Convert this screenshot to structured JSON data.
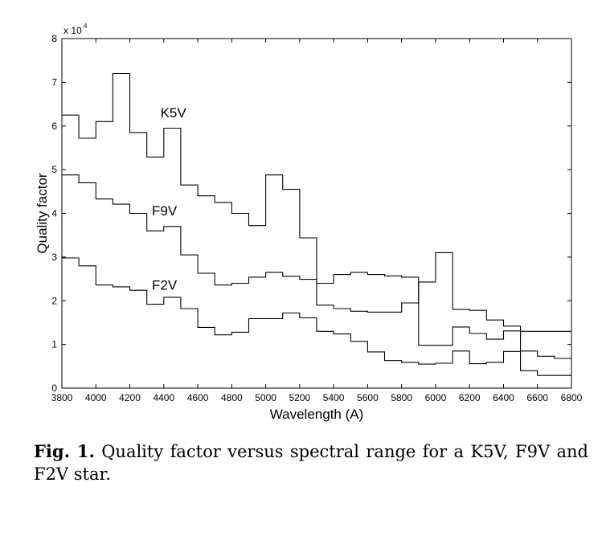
{
  "figure": {
    "label": "Fig. 1.",
    "caption": "Quality factor versus spectral range for a K5V, F9V and F2V star."
  },
  "chart_data": {
    "type": "line",
    "step": true,
    "title": "",
    "xlabel": "Wavelength (A)",
    "ylabel": "Quality factor",
    "y_multiplier_label": "x 10",
    "y_multiplier_exponent": "4",
    "xlim": [
      3800,
      6800
    ],
    "ylim": [
      0,
      80000
    ],
    "x_ticks": [
      3800,
      4000,
      4200,
      4400,
      4600,
      4800,
      5000,
      5200,
      5400,
      5600,
      5800,
      6000,
      6200,
      6400,
      6600,
      6800
    ],
    "y_ticks": [
      0,
      10000,
      20000,
      30000,
      40000,
      50000,
      60000,
      70000,
      80000
    ],
    "y_tick_labels": [
      "0",
      "1",
      "2",
      "3",
      "4",
      "5",
      "6",
      "7",
      "8"
    ],
    "grid": false,
    "bin_edges": [
      3800,
      3900,
      4000,
      4100,
      4200,
      4300,
      4400,
      4500,
      4600,
      4700,
      4800,
      4900,
      5000,
      5100,
      5200,
      5300,
      5400,
      5500,
      5600,
      5700,
      5800,
      5900,
      6000,
      6100,
      6200,
      6300,
      6400,
      6500,
      6600,
      6700,
      6800
    ],
    "series": [
      {
        "name": "K5V",
        "label_at": [
          4380,
          62000
        ],
        "values": [
          62500,
          57200,
          61000,
          72000,
          58500,
          52900,
          59500,
          46500,
          44000,
          42500,
          40000,
          37200,
          48800,
          45500,
          34400,
          19000,
          18200,
          17600,
          17400,
          17400,
          19500,
          24300,
          31000,
          18000,
          17800,
          15600,
          14200,
          13000,
          13000,
          13000
        ]
      },
      {
        "name": "F9V",
        "label_at": [
          4330,
          39500
        ],
        "values": [
          48800,
          47000,
          43300,
          42100,
          40000,
          36000,
          37000,
          30500,
          26300,
          23600,
          24000,
          25400,
          26500,
          25600,
          24900,
          24000,
          26000,
          26500,
          26000,
          25700,
          25400,
          9800,
          9800,
          14000,
          12500,
          11200,
          13100,
          8500,
          7300,
          6800
        ]
      },
      {
        "name": "F2V",
        "label_at": [
          4330,
          22500
        ],
        "values": [
          29800,
          28000,
          23600,
          23200,
          22400,
          19200,
          20800,
          18200,
          13900,
          12200,
          12800,
          15900,
          15900,
          17200,
          16100,
          13000,
          12400,
          10700,
          8300,
          6300,
          5900,
          5500,
          5700,
          8500,
          5600,
          5900,
          8400,
          4000,
          2900,
          2900
        ]
      }
    ]
  }
}
